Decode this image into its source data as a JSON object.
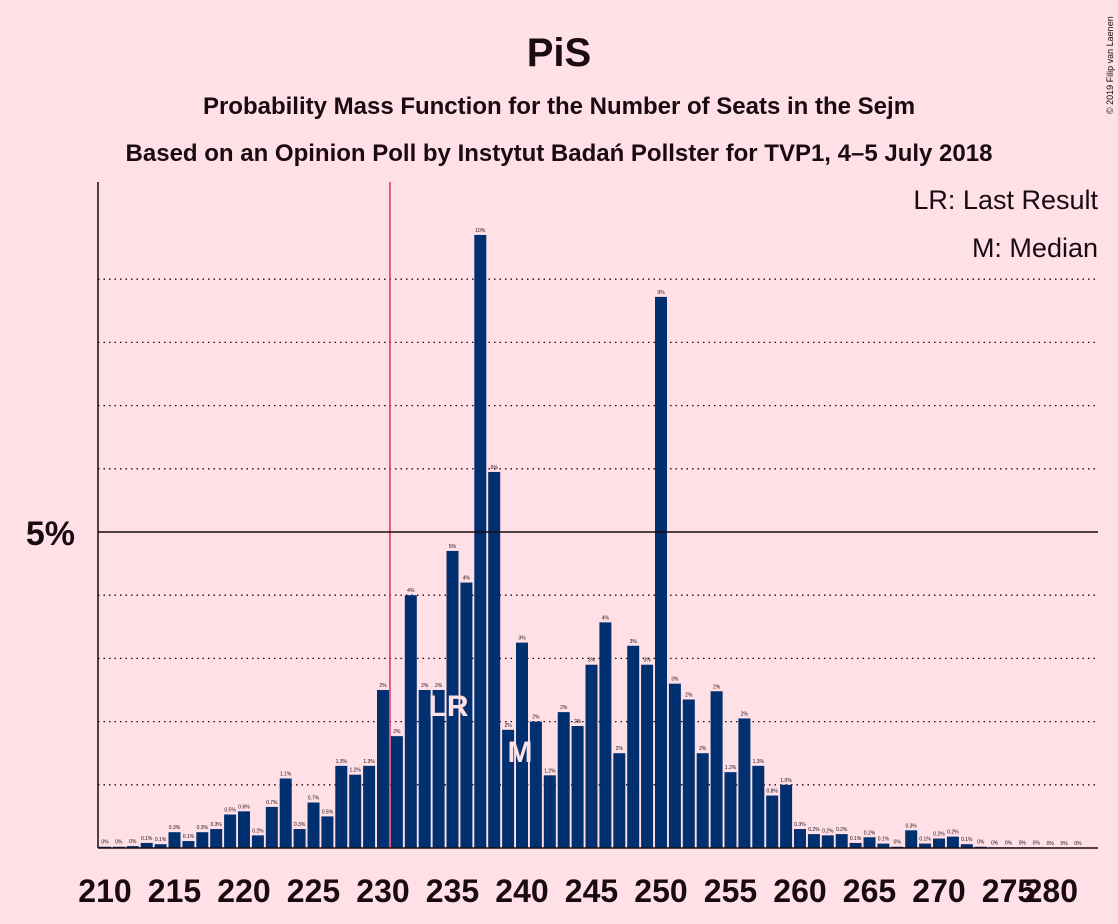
{
  "chart_data": {
    "type": "bar",
    "title": "PiS",
    "subtitle1": "Probability Mass Function for the Number of Seats in the Sejm",
    "subtitle2": "Based on an Opinion Poll by Instytut Badań Pollster for TVP1, 4–5 July 2018",
    "copyright": "© 2019 Filip van Laenen",
    "legend": {
      "lr": "LR: Last Result",
      "m": "M: Median",
      "position": "top-right"
    },
    "y_label": "5%",
    "ylim": [
      0,
      10.5
    ],
    "x_ticks": [
      210,
      215,
      220,
      225,
      230,
      235,
      240,
      245,
      250,
      255,
      260,
      265,
      270,
      275,
      280
    ],
    "last_result": 235,
    "majority_line": 231,
    "median": 240,
    "overlay_labels": {
      "lr": "LR",
      "m": "M"
    },
    "bar_color": "#003070",
    "majority_color": "#e0003c",
    "bars": [
      {
        "seat": 210,
        "value": 0.02,
        "label": "0%"
      },
      {
        "seat": 211,
        "value": 0.02,
        "label": "0%"
      },
      {
        "seat": 212,
        "value": 0.03,
        "label": "0%"
      },
      {
        "seat": 213,
        "value": 0.08,
        "label": "0.1%"
      },
      {
        "seat": 214,
        "value": 0.06,
        "label": "0.1%"
      },
      {
        "seat": 215,
        "value": 0.25,
        "label": "0.3%"
      },
      {
        "seat": 216,
        "value": 0.11,
        "label": "0.1%"
      },
      {
        "seat": 217,
        "value": 0.25,
        "label": "0.3%"
      },
      {
        "seat": 218,
        "value": 0.3,
        "label": "0.3%"
      },
      {
        "seat": 219,
        "value": 0.53,
        "label": "0.5%"
      },
      {
        "seat": 220,
        "value": 0.58,
        "label": "0.6%"
      },
      {
        "seat": 221,
        "value": 0.2,
        "label": "0.2%"
      },
      {
        "seat": 222,
        "value": 0.65,
        "label": "0.7%"
      },
      {
        "seat": 223,
        "value": 1.1,
        "label": "1.1%"
      },
      {
        "seat": 224,
        "value": 0.3,
        "label": "0.3%"
      },
      {
        "seat": 225,
        "value": 0.72,
        "label": "0.7%"
      },
      {
        "seat": 226,
        "value": 0.5,
        "label": "0.5%"
      },
      {
        "seat": 227,
        "value": 1.3,
        "label": "1.3%"
      },
      {
        "seat": 228,
        "value": 1.16,
        "label": "1.2%"
      },
      {
        "seat": 229,
        "value": 1.3,
        "label": "1.3%"
      },
      {
        "seat": 230,
        "value": 2.5,
        "label": "2%"
      },
      {
        "seat": 231,
        "value": 1.77,
        "label": "2%"
      },
      {
        "seat": 232,
        "value": 4.0,
        "label": "4%"
      },
      {
        "seat": 233,
        "value": 2.5,
        "label": "2%"
      },
      {
        "seat": 234,
        "value": 2.5,
        "label": "2%"
      },
      {
        "seat": 235,
        "value": 4.7,
        "label": "5%"
      },
      {
        "seat": 236,
        "value": 4.2,
        "label": "4%"
      },
      {
        "seat": 237,
        "value": 9.7,
        "label": "10%"
      },
      {
        "seat": 238,
        "value": 5.95,
        "label": "6%"
      },
      {
        "seat": 239,
        "value": 1.87,
        "label": "2%"
      },
      {
        "seat": 240,
        "value": 3.25,
        "label": "3%"
      },
      {
        "seat": 241,
        "value": 2.0,
        "label": "2%"
      },
      {
        "seat": 242,
        "value": 1.15,
        "label": "1.2%"
      },
      {
        "seat": 243,
        "value": 2.15,
        "label": "2%"
      },
      {
        "seat": 244,
        "value": 1.93,
        "label": "2%"
      },
      {
        "seat": 245,
        "value": 2.9,
        "label": "3%"
      },
      {
        "seat": 246,
        "value": 3.57,
        "label": "4%"
      },
      {
        "seat": 247,
        "value": 1.5,
        "label": "2%"
      },
      {
        "seat": 248,
        "value": 3.2,
        "label": "3%"
      },
      {
        "seat": 249,
        "value": 2.9,
        "label": "3%"
      },
      {
        "seat": 250,
        "value": 8.72,
        "label": "9%"
      },
      {
        "seat": 251,
        "value": 2.6,
        "label": "3%"
      },
      {
        "seat": 252,
        "value": 2.35,
        "label": "2%"
      },
      {
        "seat": 253,
        "value": 1.5,
        "label": "2%"
      },
      {
        "seat": 254,
        "value": 2.48,
        "label": "2%"
      },
      {
        "seat": 255,
        "value": 1.2,
        "label": "1.2%"
      },
      {
        "seat": 256,
        "value": 2.05,
        "label": "2%"
      },
      {
        "seat": 257,
        "value": 1.3,
        "label": "1.3%"
      },
      {
        "seat": 258,
        "value": 0.83,
        "label": "0.8%"
      },
      {
        "seat": 259,
        "value": 1.0,
        "label": "1.0%"
      },
      {
        "seat": 260,
        "value": 0.3,
        "label": "0.3%"
      },
      {
        "seat": 261,
        "value": 0.22,
        "label": "0.2%"
      },
      {
        "seat": 262,
        "value": 0.2,
        "label": "0.2%"
      },
      {
        "seat": 263,
        "value": 0.22,
        "label": "0.2%"
      },
      {
        "seat": 264,
        "value": 0.08,
        "label": "0.1%"
      },
      {
        "seat": 265,
        "value": 0.17,
        "label": "0.2%"
      },
      {
        "seat": 266,
        "value": 0.07,
        "label": "0.1%"
      },
      {
        "seat": 267,
        "value": 0.02,
        "label": "0%"
      },
      {
        "seat": 268,
        "value": 0.28,
        "label": "0.3%"
      },
      {
        "seat": 269,
        "value": 0.07,
        "label": "0.1%"
      },
      {
        "seat": 270,
        "value": 0.15,
        "label": "0.2%"
      },
      {
        "seat": 271,
        "value": 0.18,
        "label": "0.2%"
      },
      {
        "seat": 272,
        "value": 0.06,
        "label": "0.1%"
      },
      {
        "seat": 273,
        "value": 0.02,
        "label": "0%"
      },
      {
        "seat": 274,
        "value": 0.01,
        "label": "0%"
      },
      {
        "seat": 275,
        "value": 0.01,
        "label": "0%"
      },
      {
        "seat": 276,
        "value": 0.01,
        "label": "0%"
      },
      {
        "seat": 277,
        "value": 0.01,
        "label": "0%"
      },
      {
        "seat": 278,
        "value": 0.0,
        "label": "0%"
      },
      {
        "seat": 279,
        "value": 0.0,
        "label": "0%"
      },
      {
        "seat": 280,
        "value": 0.0,
        "label": "0%"
      }
    ]
  }
}
